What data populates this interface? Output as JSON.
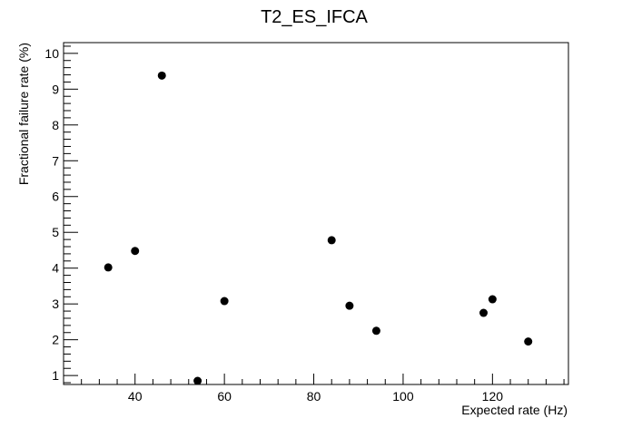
{
  "chart_data": {
    "type": "scatter",
    "title": "T2_ES_IFCA",
    "xlabel": "Expected rate (Hz)",
    "ylabel": "Fractional failure rate (%)",
    "xlim": [
      24,
      137
    ],
    "ylim": [
      0.75,
      10.3
    ],
    "x_ticks": [
      40,
      60,
      80,
      100,
      120
    ],
    "y_ticks": [
      1,
      2,
      3,
      4,
      5,
      6,
      7,
      8,
      9,
      10
    ],
    "x_minor_step": 4,
    "y_minor_step": 0.2,
    "grid": false,
    "marker_color": "#000000",
    "points": [
      {
        "x": 34,
        "y": 4.02
      },
      {
        "x": 40,
        "y": 4.48
      },
      {
        "x": 46,
        "y": 9.38
      },
      {
        "x": 54,
        "y": 0.85
      },
      {
        "x": 60,
        "y": 3.08
      },
      {
        "x": 84,
        "y": 4.78
      },
      {
        "x": 88,
        "y": 2.95
      },
      {
        "x": 94,
        "y": 2.25
      },
      {
        "x": 118,
        "y": 2.75
      },
      {
        "x": 120,
        "y": 3.13
      },
      {
        "x": 128,
        "y": 1.95
      }
    ]
  }
}
